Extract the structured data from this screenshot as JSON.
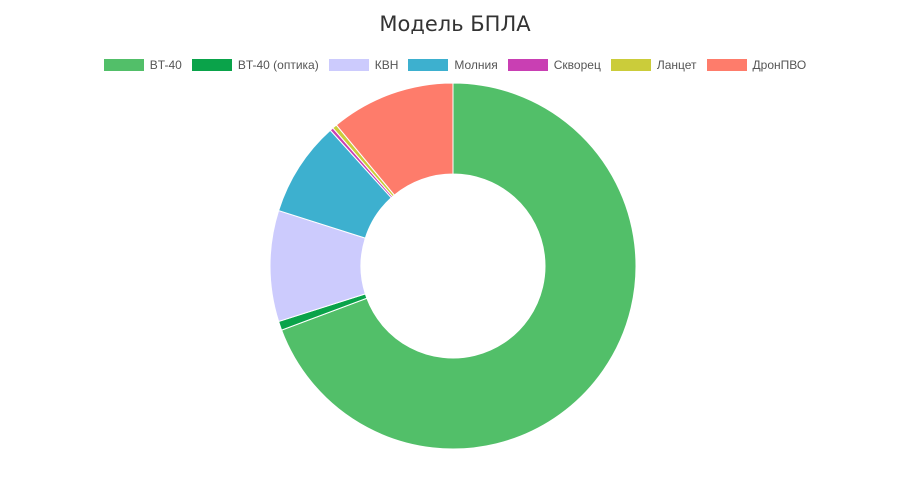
{
  "chart_data": {
    "type": "pie",
    "title": "Модель БПЛА",
    "donut": true,
    "legend_position": "top",
    "labels": [
      "BT-40",
      "BT-40 (оптика)",
      "КВН",
      "Молния",
      "Скворец",
      "Ланцет",
      "ДронПВО"
    ],
    "values": [
      69.3,
      0.8,
      9.8,
      8.4,
      0.3,
      0.4,
      11.0
    ],
    "colors": [
      "#52bf69",
      "#0aa34a",
      "#cccbfd",
      "#3db0cf",
      "#c93fb3",
      "#cbcc3a",
      "#fe7c6b"
    ]
  }
}
